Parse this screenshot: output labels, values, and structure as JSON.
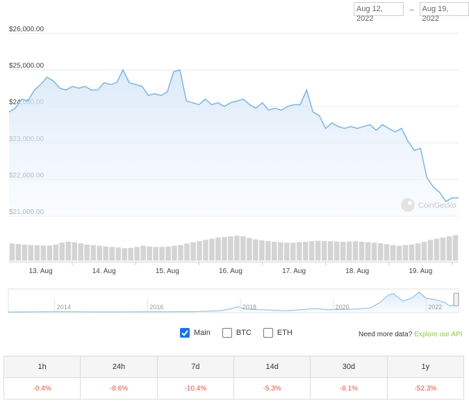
{
  "date_range": {
    "from": "Aug 12, 2022",
    "arrow": "→",
    "to": "Aug 19, 2022"
  },
  "watermark": "CoinGecko",
  "chart_data": {
    "type": "area",
    "y_ticks": [
      "$26,000.00",
      "$25,000.00",
      "$24,000.00",
      "$23,000.00",
      "$22,000.00",
      "$21,000.00"
    ],
    "y_tick_values": [
      26000,
      25000,
      24000,
      23000,
      22000,
      21000
    ],
    "ylim": [
      21000,
      26000
    ],
    "x_ticks": [
      "13. Aug",
      "14. Aug",
      "15. Aug",
      "16. Aug",
      "17. Aug",
      "18. Aug",
      "19. Aug"
    ],
    "x_tick_positions": [
      0.5,
      1.5,
      2.5,
      3.5,
      4.5,
      5.5,
      6.5
    ],
    "xlim": [
      0.0,
      7.1
    ],
    "price_series": {
      "x": [
        0.0,
        0.1,
        0.2,
        0.3,
        0.4,
        0.5,
        0.6,
        0.7,
        0.8,
        0.9,
        1.0,
        1.1,
        1.2,
        1.3,
        1.4,
        1.5,
        1.6,
        1.7,
        1.8,
        1.9,
        2.0,
        2.1,
        2.2,
        2.3,
        2.4,
        2.5,
        2.6,
        2.7,
        2.8,
        2.9,
        3.0,
        3.1,
        3.2,
        3.3,
        3.4,
        3.5,
        3.6,
        3.7,
        3.8,
        3.9,
        4.0,
        4.1,
        4.2,
        4.3,
        4.4,
        4.5,
        4.6,
        4.7,
        4.8,
        4.9,
        5.0,
        5.1,
        5.2,
        5.3,
        5.4,
        5.5,
        5.6,
        5.7,
        5.8,
        5.9,
        6.0,
        6.1,
        6.2,
        6.3,
        6.4,
        6.5,
        6.6,
        6.7,
        6.8,
        6.9,
        7.0,
        7.1
      ],
      "y": [
        23850,
        23950,
        24200,
        24150,
        24450,
        24600,
        24800,
        24700,
        24500,
        24450,
        24550,
        24500,
        24550,
        24450,
        24450,
        24650,
        24600,
        24650,
        25000,
        24650,
        24600,
        24550,
        24300,
        24350,
        24300,
        24400,
        24950,
        25000,
        24150,
        24100,
        24050,
        24200,
        24050,
        24100,
        24000,
        24100,
        24150,
        24200,
        24050,
        23950,
        24100,
        23900,
        23950,
        23900,
        24000,
        24050,
        24050,
        24450,
        23850,
        23750,
        23400,
        23550,
        23450,
        23400,
        23450,
        23400,
        23450,
        23500,
        23350,
        23500,
        23400,
        23300,
        23400,
        23050,
        22800,
        22850,
        22050,
        21800,
        21650,
        21400,
        21500,
        21500
      ]
    },
    "volume_series": [
      0.55,
      0.52,
      0.5,
      0.48,
      0.47,
      0.46,
      0.46,
      0.5,
      0.58,
      0.62,
      0.6,
      0.55,
      0.5,
      0.48,
      0.45,
      0.42,
      0.4,
      0.38,
      0.35,
      0.36,
      0.4,
      0.45,
      0.42,
      0.4,
      0.4,
      0.42,
      0.45,
      0.48,
      0.55,
      0.6,
      0.65,
      0.7,
      0.75,
      0.8,
      0.82,
      0.85,
      0.88,
      0.85,
      0.78,
      0.72,
      0.68,
      0.65,
      0.62,
      0.6,
      0.58,
      0.58,
      0.6,
      0.62,
      0.64,
      0.66,
      0.65,
      0.64,
      0.63,
      0.62,
      0.63,
      0.64,
      0.62,
      0.6,
      0.58,
      0.56,
      0.52,
      0.48,
      0.45,
      0.48,
      0.5,
      0.55,
      0.62,
      0.7,
      0.75,
      0.8,
      0.85,
      0.9
    ],
    "navigator": {
      "tick_labels": [
        "2014",
        "2016",
        "2018",
        "2020",
        "2022"
      ],
      "tick_positions": [
        2014,
        2016,
        2018,
        2020,
        2022
      ],
      "xlim": [
        2013.0,
        2022.7
      ],
      "ylim": [
        0,
        70000
      ],
      "series_x": [
        2013.0,
        2013.5,
        2014.0,
        2014.5,
        2015.0,
        2015.5,
        2016.0,
        2016.5,
        2017.0,
        2017.3,
        2017.6,
        2017.8,
        2017.95,
        2018.1,
        2018.3,
        2018.6,
        2019.0,
        2019.4,
        2019.6,
        2019.9,
        2020.2,
        2020.5,
        2020.8,
        2021.0,
        2021.2,
        2021.3,
        2021.5,
        2021.7,
        2021.85,
        2022.0,
        2022.2,
        2022.4,
        2022.5,
        2022.6,
        2022.7
      ],
      "series_y": [
        100,
        150,
        800,
        500,
        300,
        250,
        450,
        650,
        1000,
        2500,
        4500,
        11000,
        17000,
        10000,
        8000,
        6500,
        3800,
        8500,
        11000,
        7500,
        8500,
        9500,
        13000,
        30000,
        57000,
        60000,
        35000,
        46000,
        65000,
        45000,
        40000,
        31000,
        20000,
        22000,
        21500
      ]
    }
  },
  "toggles": [
    {
      "label": "Main",
      "checked": true
    },
    {
      "label": "BTC",
      "checked": false
    },
    {
      "label": "ETH",
      "checked": false
    }
  ],
  "api_note": {
    "text": "Need more data?",
    "link": "Explore our API"
  },
  "performance": {
    "headers": [
      "1h",
      "24h",
      "7d",
      "14d",
      "30d",
      "1y"
    ],
    "values": [
      "-0.4%",
      "-8.6%",
      "-10.4%",
      "-5.3%",
      "-8.1%",
      "-52.3%"
    ]
  },
  "colors": {
    "line": "#82b8e6",
    "fill_top": "#d6e6f7",
    "fill_bottom": "#f7fbff",
    "grid": "#e8e8e8",
    "volume": "#d4d4d4",
    "negative": "#e15241",
    "link": "#8dc647"
  }
}
